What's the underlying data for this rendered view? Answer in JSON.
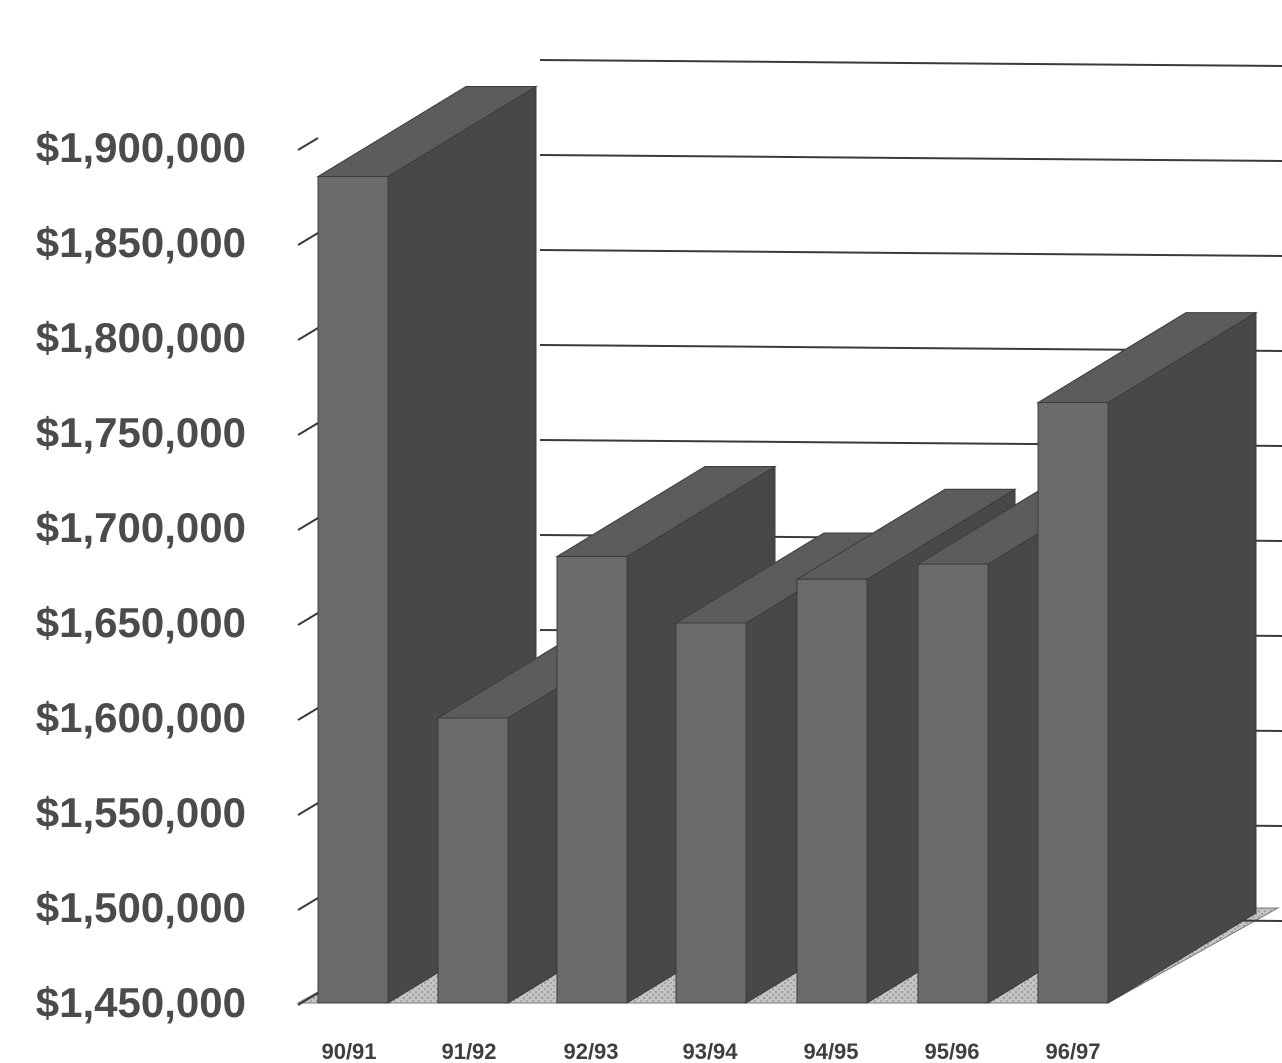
{
  "chart_data": {
    "type": "bar",
    "title": "",
    "xlabel": "",
    "ylabel": "",
    "categories": [
      "90/91",
      "91/92",
      "92/93",
      "93/94",
      "94/95",
      "95/96",
      "96/97"
    ],
    "values": [
      1885000,
      1600000,
      1685000,
      1650000,
      1673000,
      1681000,
      1766000
    ],
    "ylim": [
      1450000,
      1900000
    ],
    "yticks": [
      1450000,
      1500000,
      1550000,
      1600000,
      1650000,
      1700000,
      1750000,
      1800000,
      1850000,
      1900000
    ],
    "ytick_labels": [
      "$1,450,000",
      "$1,500,000",
      "$1,550,000",
      "$1,600,000",
      "$1,650,000",
      "$1,700,000",
      "$1,750,000",
      "$1,800,000",
      "$1,850,000",
      "$1,900,000"
    ],
    "grid": true,
    "style": "3d",
    "colors": {
      "bar_front": "#6b6b6b",
      "bar_side": "#484848",
      "bar_top": "#5c5c5c",
      "floor": "#b4b4b4",
      "gridline": "#3a3a3a"
    }
  }
}
